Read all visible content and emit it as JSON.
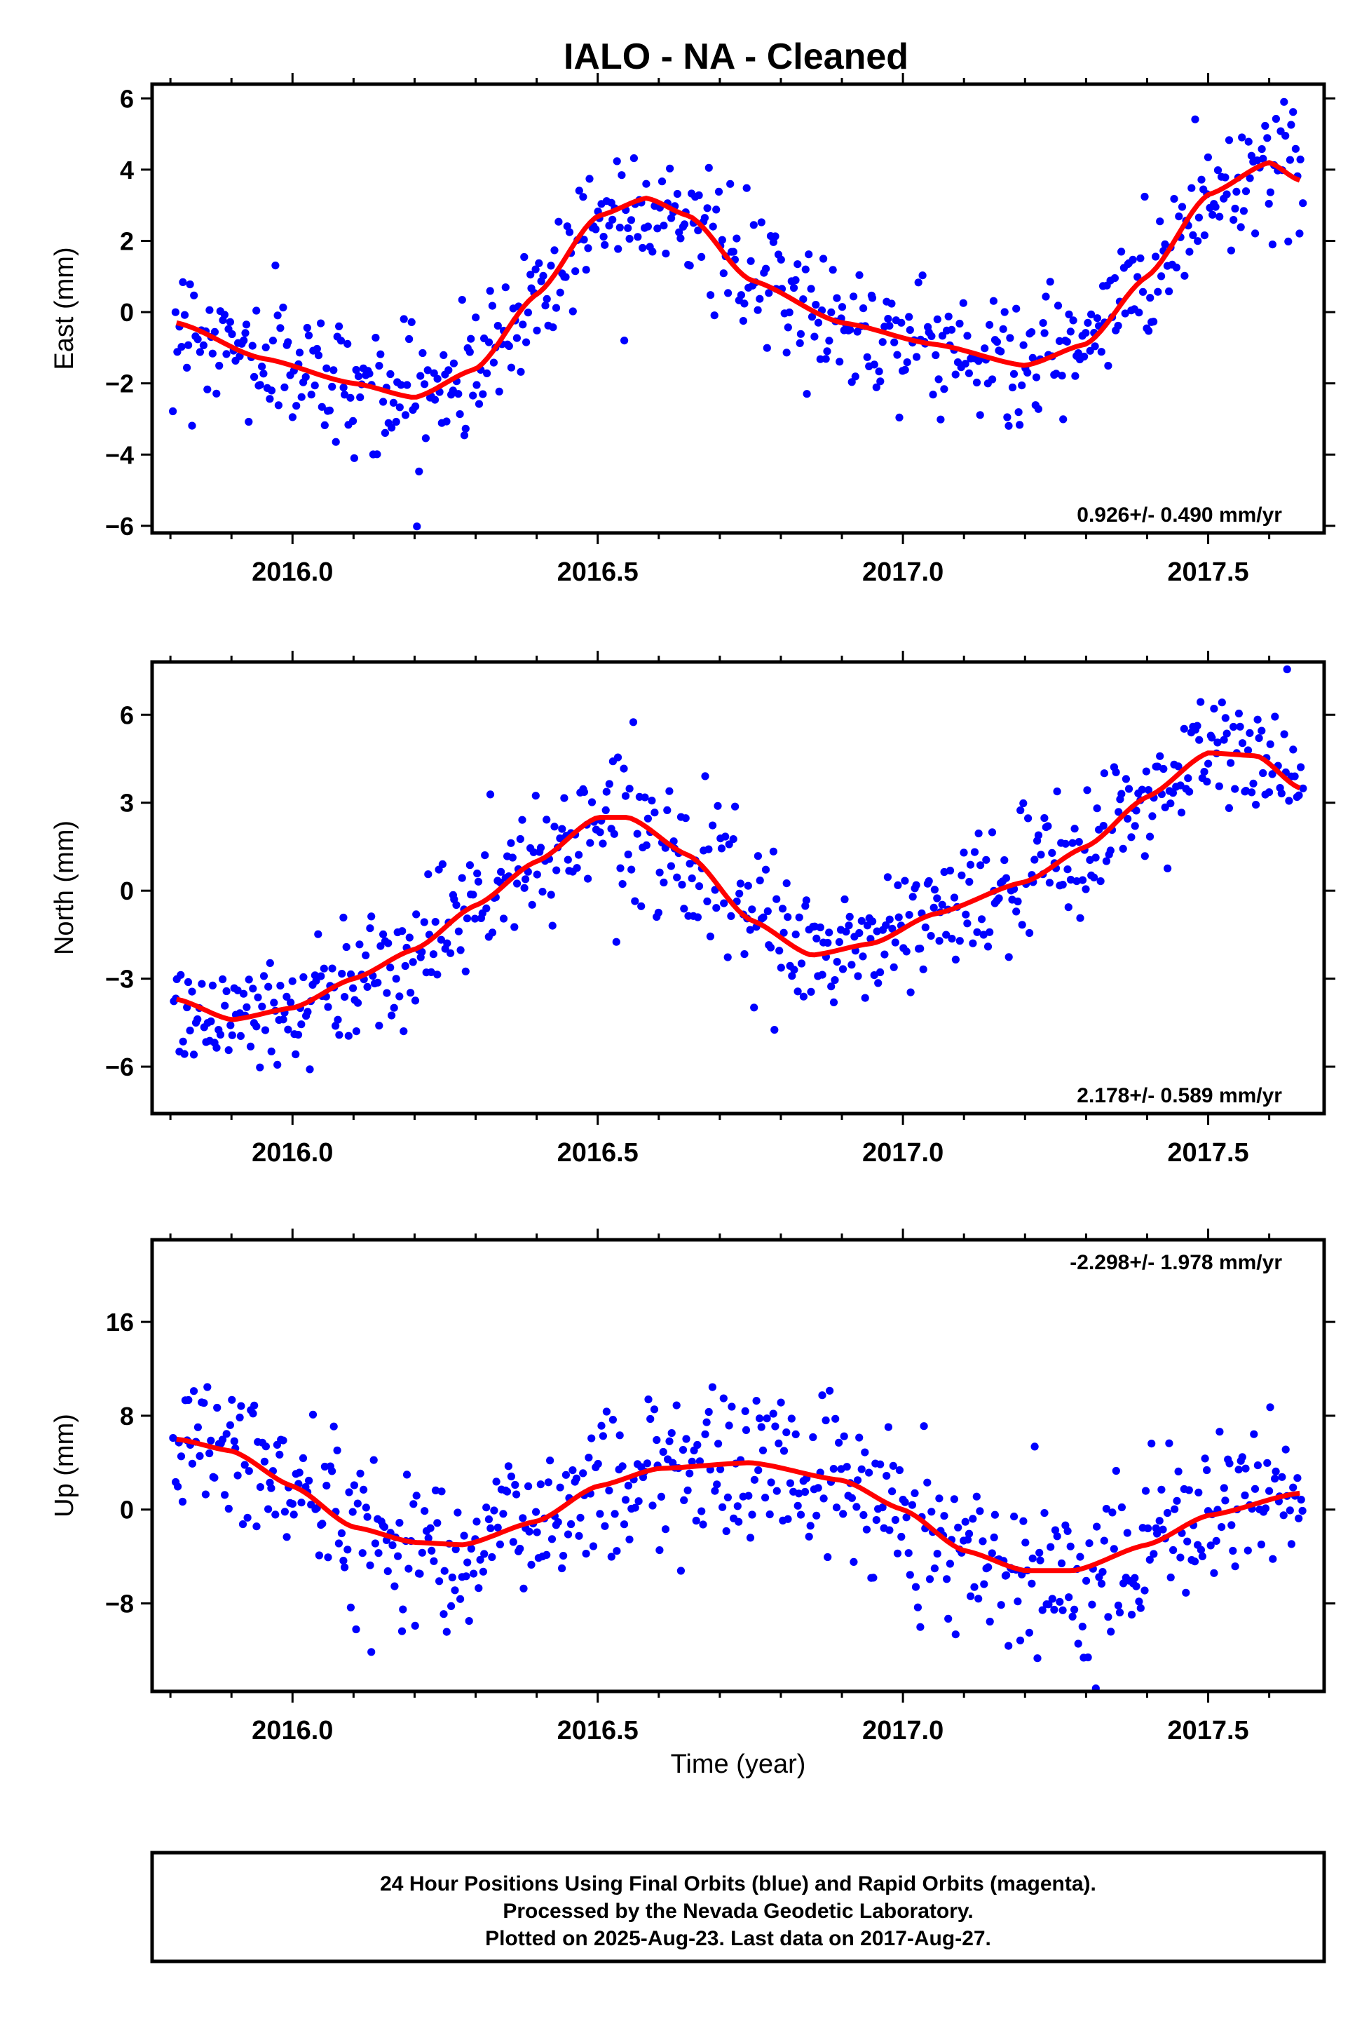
{
  "title": "IALO  - NA - Cleaned",
  "x_axis_label": "Time (year)",
  "footer": {
    "line1": "24 Hour Positions Using Final Orbits (blue) and Rapid Orbits (magenta).",
    "line2": "Processed by the Nevada Geodetic Laboratory.",
    "line3": "Plotted on 2025-Aug-23. Last data on 2017-Aug-27."
  },
  "colors": {
    "points": "#0000ff",
    "fit": "#ff0000",
    "frame": "#000000"
  },
  "chart_data": [
    {
      "type": "scatter",
      "ylabel": "East (mm)",
      "rate_text": "0.926+/- 0.490 mm/yr",
      "rate_position": "bottom-right",
      "xlim": [
        2015.77,
        2017.69
      ],
      "ylim": [
        -6.2,
        6.4
      ],
      "xticks": [
        "2016.0",
        "2016.5",
        "2017.0",
        "2017.5"
      ],
      "yticks": [
        -6,
        -4,
        -2,
        0,
        2,
        4,
        6
      ],
      "ytick_labels": [
        "−6",
        "−4",
        "−2",
        "0",
        "2",
        "4",
        "6"
      ],
      "fit": {
        "x": [
          2015.81,
          2015.95,
          2016.1,
          2016.2,
          2016.3,
          2016.4,
          2016.5,
          2016.58,
          2016.65,
          2016.75,
          2016.9,
          2017.05,
          2017.2,
          2017.3,
          2017.4,
          2017.5,
          2017.6,
          2017.65
        ],
        "y": [
          -0.3,
          -1.3,
          -2.0,
          -2.4,
          -1.6,
          0.5,
          2.7,
          3.2,
          2.7,
          0.9,
          -0.3,
          -0.9,
          -1.5,
          -0.9,
          1.0,
          3.3,
          4.2,
          3.7
        ]
      },
      "noise_sd": 0.9,
      "n_points": 600
    },
    {
      "type": "scatter",
      "ylabel": "North (mm)",
      "rate_text": "2.178+/- 0.589 mm/yr",
      "rate_position": "bottom-right",
      "xlim": [
        2015.77,
        2017.69
      ],
      "ylim": [
        -7.6,
        7.8
      ],
      "xticks": [
        "2016.0",
        "2016.5",
        "2017.0",
        "2017.5"
      ],
      "yticks": [
        -6,
        -3,
        0,
        3,
        6
      ],
      "ytick_labels": [
        "−6",
        "−3",
        "0",
        "3",
        "6"
      ],
      "fit": {
        "x": [
          2015.81,
          2015.9,
          2016.0,
          2016.1,
          2016.2,
          2016.3,
          2016.4,
          2016.5,
          2016.55,
          2016.65,
          2016.75,
          2016.85,
          2016.95,
          2017.05,
          2017.2,
          2017.3,
          2017.4,
          2017.5,
          2017.58,
          2017.65
        ],
        "y": [
          -3.7,
          -4.4,
          -4.0,
          -3.0,
          -2.0,
          -0.5,
          1.0,
          2.5,
          2.5,
          1.2,
          -1.0,
          -2.2,
          -1.8,
          -0.8,
          0.3,
          1.5,
          3.2,
          4.7,
          4.6,
          3.5
        ]
      },
      "noise_sd": 1.1,
      "n_points": 600
    },
    {
      "type": "scatter",
      "ylabel": "Up (mm)",
      "rate_text": "-2.298+/- 1.978 mm/yr",
      "rate_position": "top-right",
      "xlim": [
        2015.77,
        2017.69
      ],
      "ylim": [
        -15.5,
        23
      ],
      "xticks": [
        "2016.0",
        "2016.5",
        "2017.0",
        "2017.5"
      ],
      "yticks": [
        -8,
        0,
        8,
        16
      ],
      "ytick_labels": [
        "−8",
        "0",
        "8",
        "16"
      ],
      "fit": {
        "x": [
          2015.81,
          2015.9,
          2016.0,
          2016.1,
          2016.2,
          2016.28,
          2016.4,
          2016.5,
          2016.6,
          2016.75,
          2016.9,
          2017.0,
          2017.1,
          2017.2,
          2017.28,
          2017.4,
          2017.5,
          2017.65
        ],
        "y": [
          6.0,
          5.0,
          2.0,
          -1.5,
          -2.8,
          -3.0,
          -1.0,
          2.0,
          3.5,
          4.0,
          2.5,
          0.0,
          -3.5,
          -5.2,
          -5.2,
          -3.0,
          -0.5,
          1.4
        ]
      },
      "noise_sd": 3.3,
      "n_points": 600
    }
  ]
}
